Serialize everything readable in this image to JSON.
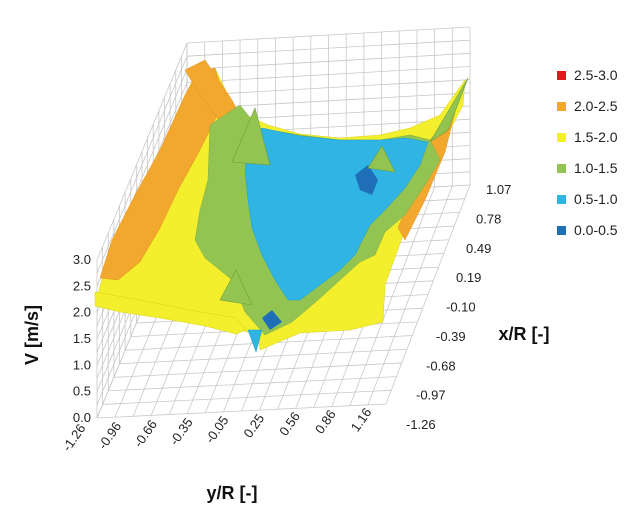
{
  "chart_data": {
    "type": "3d-surface",
    "title": "",
    "xlabel": "y/R [-]",
    "ylabel": "x/R [-]",
    "zlabel": "V [m/s]",
    "x_ticks": [
      "-1.26",
      "-0.96",
      "-0.66",
      "-0.35",
      "-0.05",
      "0.25",
      "0.56",
      "0.86",
      "1.16"
    ],
    "y_ticks": [
      "1.07",
      "0.78",
      "0.49",
      "0.19",
      "-0.10",
      "-0.39",
      "-0.68",
      "-0.97",
      "-1.26"
    ],
    "z_ticks": [
      "3.0",
      "2.5",
      "2.0",
      "1.5",
      "1.0",
      "0.5",
      "0.0"
    ],
    "zlim": [
      0,
      3
    ],
    "legend_position": "right",
    "bands": [
      {
        "label": "2.5-3.0",
        "color": "#e8151b"
      },
      {
        "label": "2.0-2.5",
        "color": "#f2a72e"
      },
      {
        "label": "1.5-2.0",
        "color": "#f3ef2c"
      },
      {
        "label": "1.0-1.5",
        "color": "#93c452"
      },
      {
        "label": "0.5-1.0",
        "color": "#2fb4e3"
      },
      {
        "label": "0.0-0.5",
        "color": "#1e6fb8"
      }
    ],
    "surface_description_values": {
      "rim_velocity": 2.0,
      "center_velocity": 0.7,
      "minimum_velocity": 0.1
    }
  }
}
